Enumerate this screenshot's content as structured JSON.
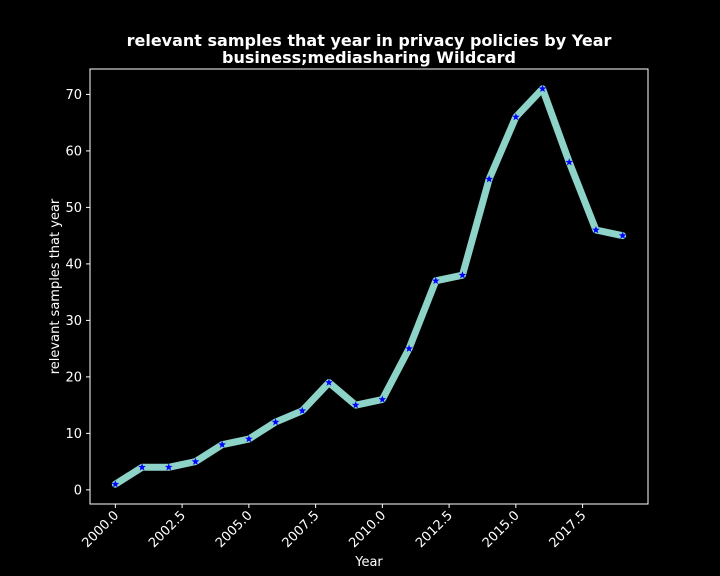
{
  "chart_data": {
    "type": "line",
    "title": "relevant samples that year in privacy policies by Year",
    "subtitle": "business;mediasharing Wildcard",
    "xlabel": "Year",
    "ylabel": "relevant samples that year",
    "x": [
      2000,
      2001,
      2002,
      2003,
      2004,
      2005,
      2006,
      2007,
      2008,
      2009,
      2010,
      2011,
      2012,
      2013,
      2014,
      2015,
      2016,
      2017,
      2018,
      2019
    ],
    "series": [
      {
        "values": [
          1,
          4,
          4,
          5,
          8,
          9,
          12,
          14,
          19,
          15,
          16,
          25,
          37,
          38,
          55,
          66,
          71,
          58,
          46,
          45
        ]
      }
    ],
    "xlim": [
      1999.05,
      2019.95
    ],
    "ylim": [
      -2.5,
      74.5
    ],
    "xticks": [
      2000.0,
      2002.5,
      2005.0,
      2007.5,
      2010.0,
      2012.5,
      2015.0,
      2017.5
    ],
    "xtick_labels": [
      "2000.0",
      "2002.5",
      "2005.0",
      "2007.5",
      "2010.0",
      "2012.5",
      "2015.0",
      "2017.5"
    ],
    "yticks": [
      0,
      10,
      20,
      30,
      40,
      50,
      60,
      70
    ],
    "ytick_labels": [
      "0",
      "10",
      "20",
      "30",
      "40",
      "50",
      "60",
      "70"
    ],
    "grid": false,
    "line_color": "#8dd3c7",
    "marker": "star",
    "marker_color": "#0000ff",
    "background": "#000000",
    "foreground": "#ffffff"
  }
}
